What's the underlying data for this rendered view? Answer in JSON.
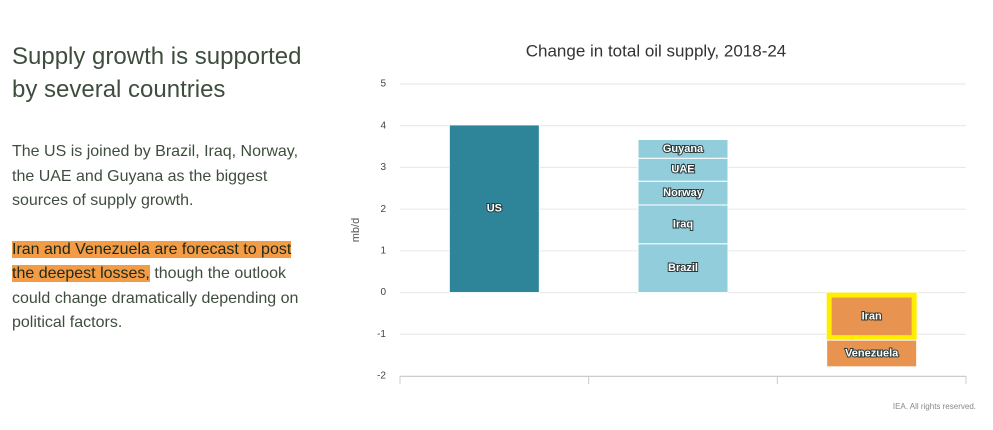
{
  "text_panel": {
    "heading": "Supply growth is supported by several countries",
    "paragraph_1": "The US is joined by Brazil, Iraq, Norway, the UAE and Guyana as the biggest sources of supply growth.",
    "paragraph_2_highlight": "Iran and Venezuela are forecast to post the deepest losses,",
    "paragraph_2_rest": " though the outlook could change dramatically depending on political factors."
  },
  "chart_data": {
    "type": "stacked_bar",
    "title": "Change in total oil supply, 2018-24",
    "y_label": "mb/d",
    "categories": [
      null,
      null,
      null
    ],
    "series": [
      {
        "name": "US",
        "color": "#2e8599",
        "values": [
          4.02,
          null,
          null
        ]
      },
      {
        "name": "Brazil",
        "color": "#92cddc",
        "values": [
          null,
          1.17,
          null
        ]
      },
      {
        "name": "Iraq",
        "color": "#92cddc",
        "values": [
          null,
          0.93,
          null
        ]
      },
      {
        "name": "Norway",
        "color": "#92cddc",
        "values": [
          null,
          0.57,
          null
        ]
      },
      {
        "name": "UAE",
        "color": "#92cddc",
        "values": [
          null,
          0.55,
          null
        ]
      },
      {
        "name": "Guyana",
        "color": "#92cddc",
        "values": [
          null,
          0.45,
          null
        ]
      },
      {
        "name": "Iran",
        "color": "#e8934f",
        "border": "#ffee00",
        "values": [
          null,
          null,
          -1.14
        ]
      },
      {
        "name": "Venezuela",
        "color": "#e8934f",
        "values": [
          null,
          null,
          -0.64
        ]
      }
    ],
    "ylim": [
      -2,
      5
    ],
    "yticks": [
      -2,
      -1,
      0,
      1,
      2,
      3,
      4,
      5
    ],
    "grid": true,
    "credit": "IEA. All rights reserved."
  }
}
